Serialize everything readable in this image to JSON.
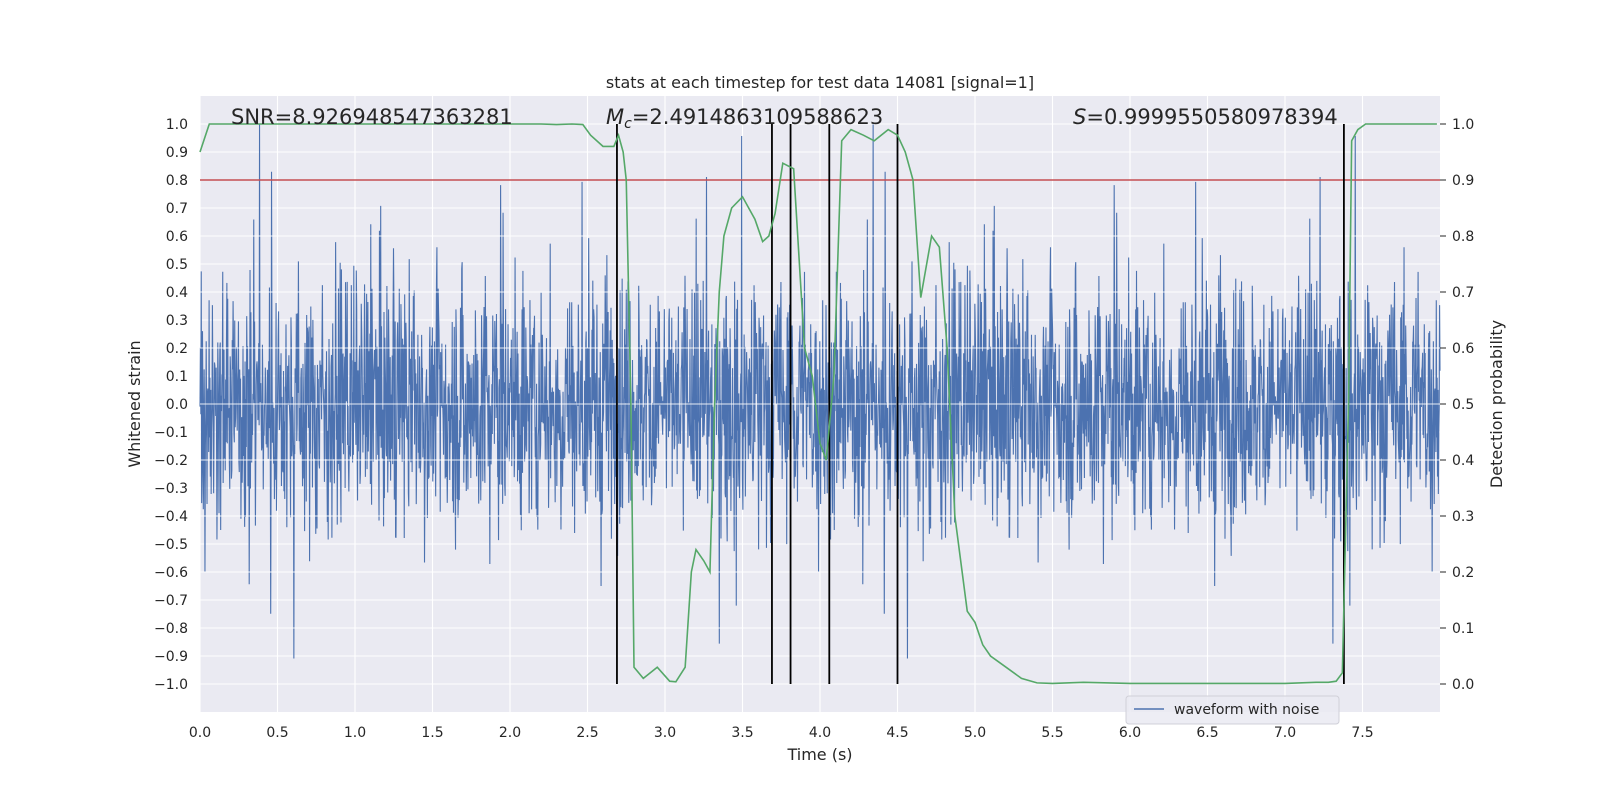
{
  "chart_data": {
    "type": "line",
    "title": "stats at each timestep for test data 14081 [signal=1]",
    "xlabel": "Time (s)",
    "ylabel": "Whitened strain",
    "ylabel_right": "Detection probability",
    "xlim": [
      0.0,
      8.0
    ],
    "ylim": [
      -1.1,
      1.1
    ],
    "ylim_right": [
      -0.05,
      1.05
    ],
    "x_ticks": [
      "0.0",
      "0.5",
      "1.0",
      "1.5",
      "2.0",
      "2.5",
      "3.0",
      "3.5",
      "4.0",
      "4.5",
      "5.0",
      "5.5",
      "6.0",
      "6.5",
      "7.0",
      "7.5"
    ],
    "y_ticks": [
      "1.0",
      "0.9",
      "0.8",
      "0.7",
      "0.6",
      "0.5",
      "0.4",
      "0.3",
      "0.2",
      "0.1",
      "0.0",
      "−0.1",
      "−0.2",
      "−0.3",
      "−0.4",
      "−0.5",
      "−0.6",
      "−0.7",
      "−0.8",
      "−0.9",
      "−1.0"
    ],
    "y_ticks_right": [
      "1.0",
      "0.9",
      "0.8",
      "0.7",
      "0.6",
      "0.5",
      "0.4",
      "0.3",
      "0.2",
      "0.1",
      "0.0"
    ],
    "grid": true,
    "legend": {
      "position": "bottom-right",
      "entries": [
        "waveform with noise"
      ]
    },
    "annotations": {
      "snr": "SNR=8.926948547363281",
      "mc_symbol": "M",
      "mc_subscript": "c",
      "mc_value": "=2.4914863109588623",
      "s_symbol": "S",
      "s_value": "=0.9999550580978394"
    },
    "threshold_line": {
      "axis": "right",
      "value": 0.9,
      "color": "#c44e52"
    },
    "vertical_markers": [
      2.69,
      3.69,
      3.81,
      4.06,
      4.5,
      7.38
    ],
    "waveform": {
      "name": "waveform with noise",
      "color": "#4c72b0",
      "duration": 8.0,
      "amplitude_rms": 0.22,
      "peak_max": 1.0,
      "peak_min": -0.99
    },
    "probability_series": {
      "color": "#55a868",
      "x": [
        0.0,
        0.06,
        0.15,
        0.3,
        0.5,
        1.0,
        1.5,
        2.0,
        2.2,
        2.3,
        2.4,
        2.47,
        2.52,
        2.6,
        2.63,
        2.67,
        2.7,
        2.73,
        2.75,
        2.78,
        2.8,
        2.86,
        2.95,
        3.03,
        3.07,
        3.13,
        3.17,
        3.2,
        3.25,
        3.29,
        3.32,
        3.35,
        3.38,
        3.43,
        3.5,
        3.58,
        3.63,
        3.67,
        3.71,
        3.76,
        3.83,
        3.9,
        3.95,
        4.0,
        4.04,
        4.09,
        4.14,
        4.2,
        4.28,
        4.35,
        4.44,
        4.5,
        4.55,
        4.6,
        4.65,
        4.72,
        4.77,
        4.82,
        4.87,
        4.95,
        5.0,
        5.05,
        5.1,
        5.2,
        5.3,
        5.4,
        5.5,
        5.7,
        6.0,
        6.5,
        7.0,
        7.2,
        7.28,
        7.33,
        7.37,
        7.41,
        7.43,
        7.47,
        7.52,
        7.6,
        7.7,
        7.8,
        7.98
      ],
      "y": [
        0.95,
        1.0,
        1.0,
        1.0,
        1.0,
        1.0,
        1.0,
        1.0,
        1.0,
        0.999,
        1.0,
        0.999,
        0.98,
        0.96,
        0.96,
        0.96,
        0.98,
        0.95,
        0.9,
        0.5,
        0.03,
        0.01,
        0.03,
        0.005,
        0.004,
        0.03,
        0.2,
        0.24,
        0.22,
        0.2,
        0.5,
        0.7,
        0.8,
        0.85,
        0.87,
        0.83,
        0.79,
        0.8,
        0.84,
        0.93,
        0.92,
        0.6,
        0.55,
        0.43,
        0.4,
        0.55,
        0.97,
        0.99,
        0.98,
        0.97,
        0.99,
        0.98,
        0.95,
        0.9,
        0.69,
        0.8,
        0.78,
        0.6,
        0.3,
        0.13,
        0.11,
        0.07,
        0.05,
        0.03,
        0.01,
        0.002,
        0.001,
        0.003,
        0.001,
        0.001,
        0.001,
        0.003,
        0.003,
        0.005,
        0.02,
        0.5,
        0.97,
        0.99,
        1.0,
        1.0,
        1.0,
        1.0,
        1.0
      ]
    },
    "colors": {
      "axes_face": "#eaeaf2",
      "grid": "#ffffff",
      "markers": "#000000"
    }
  }
}
